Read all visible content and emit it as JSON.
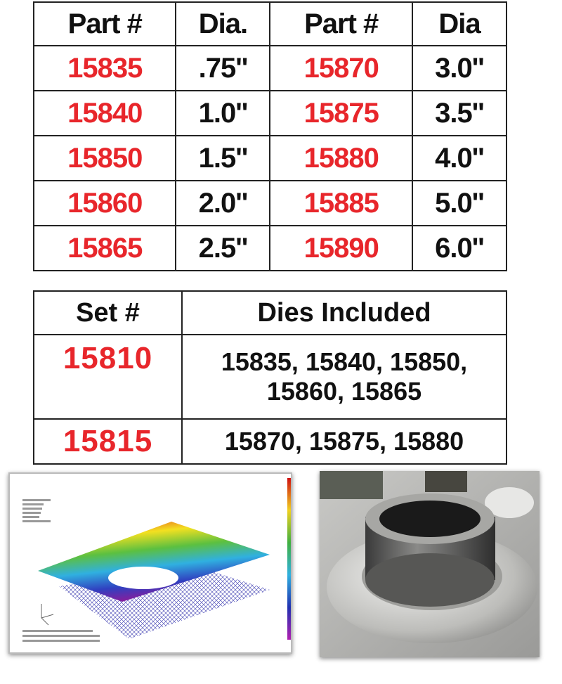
{
  "parts_table": {
    "headers": [
      "Part #",
      "Dia.",
      "Part #",
      "Dia"
    ],
    "rows": [
      [
        "15835",
        ".75''",
        "15870",
        "3.0''"
      ],
      [
        "15840",
        "1.0''",
        "15875",
        "3.5''"
      ],
      [
        "15850",
        "1.5''",
        "15880",
        "4.0''"
      ],
      [
        "15860",
        "2.0''",
        "15885",
        "5.0''"
      ],
      [
        "15865",
        "2.5''",
        "15890",
        "6.0''"
      ]
    ]
  },
  "sets_table": {
    "headers": [
      "Set #",
      "Dies Included"
    ],
    "rows": [
      {
        "set": "15810",
        "dies_line1": "15835, 15840, 15850,",
        "dies_line2": "15860, 15865"
      },
      {
        "set": "15815",
        "dies_line1": "15870, 15875, 15880"
      }
    ]
  },
  "colors": {
    "part_number": "#e8262b",
    "text": "#111111",
    "border": "#222222"
  },
  "images": {
    "left": "fea-stress-simulation",
    "right": "die-formed-flange-photo"
  }
}
